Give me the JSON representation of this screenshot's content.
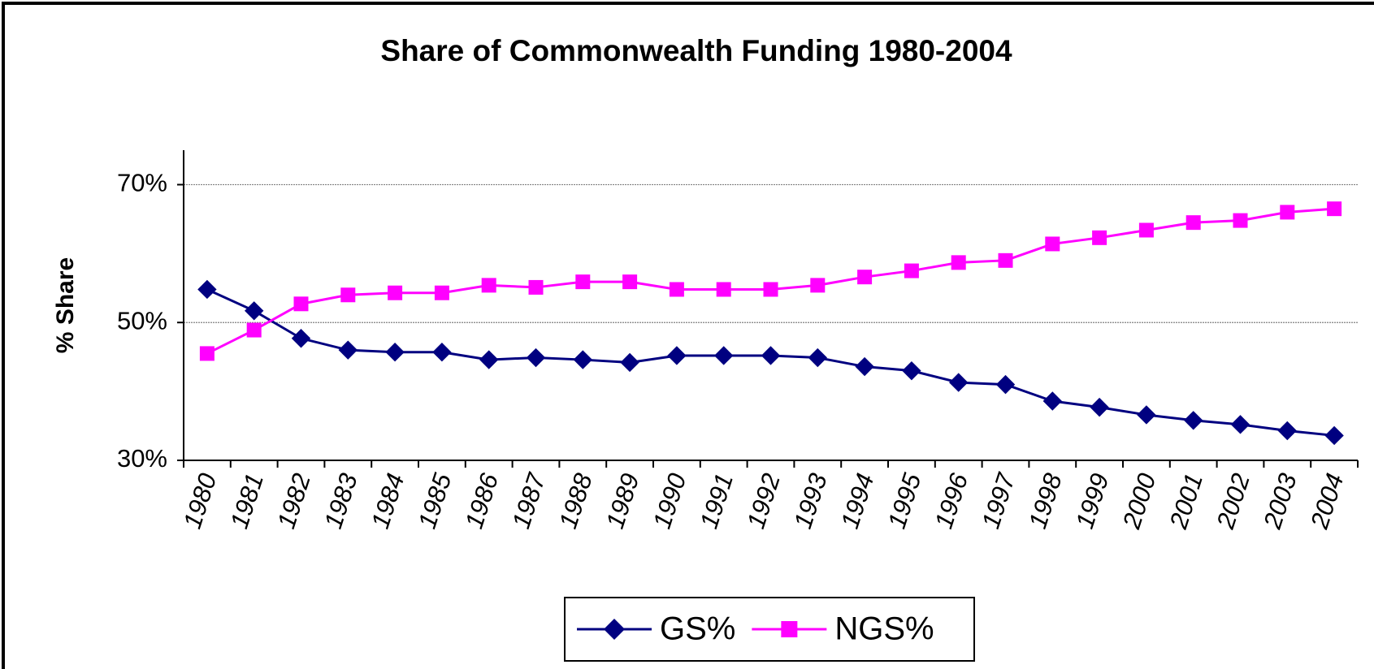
{
  "chart_data": {
    "type": "line",
    "title": "Share of Commonwealth Funding 1980-2004",
    "y_label": "% Share",
    "categories": [
      "1980",
      "1981",
      "1982",
      "1983",
      "1984",
      "1985",
      "1986",
      "1987",
      "1988",
      "1989",
      "1990",
      "1991",
      "1992",
      "1993",
      "1994",
      "1995",
      "1996",
      "1997",
      "1998",
      "1999",
      "2000",
      "2001",
      "2002",
      "2003",
      "2004"
    ],
    "series": [
      {
        "name": "GS%",
        "color": "#000080",
        "marker": "diamond",
        "values": [
          54.8,
          51.7,
          47.7,
          46,
          45.7,
          45.7,
          44.6,
          44.9,
          44.6,
          44.2,
          45.2,
          45.2,
          45.2,
          44.9,
          43.6,
          43,
          41.3,
          41,
          38.6,
          37.7,
          36.6,
          35.8,
          35.2,
          34.3,
          33.6
        ]
      },
      {
        "name": "NGS%",
        "color": "#ff00ff",
        "marker": "square",
        "values": [
          45.5,
          48.9,
          52.7,
          54,
          54.3,
          54.3,
          55.4,
          55.1,
          55.9,
          55.9,
          54.8,
          54.8,
          54.8,
          55.4,
          56.6,
          57.5,
          58.7,
          59,
          61.4,
          62.3,
          63.4,
          64.5,
          64.8,
          66,
          66.5
        ]
      }
    ],
    "ylim": [
      30,
      75
    ],
    "yticks": [
      {
        "value": 30,
        "label": "30%"
      },
      {
        "value": 50,
        "label": "50%"
      },
      {
        "value": 70,
        "label": "70%"
      }
    ],
    "grid": true,
    "legend": "bottom"
  }
}
